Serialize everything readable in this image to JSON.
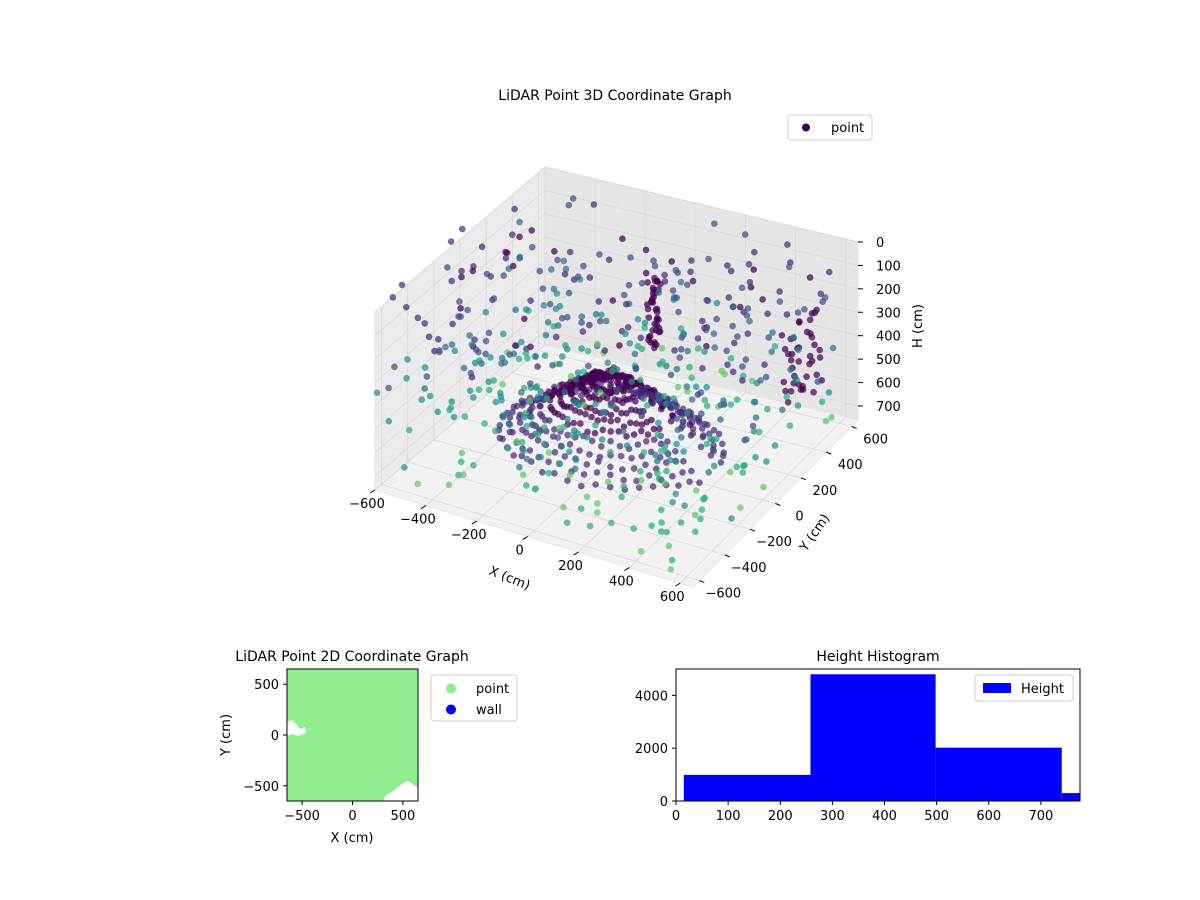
{
  "colors": {
    "point_dark": "#440154",
    "point_blue": "#3b528b",
    "point_teal": "#21918c",
    "point_green": "#5ec962",
    "fill_2d": "#90ee90",
    "wall": "#0000ff",
    "hist": "#0000ff",
    "pane": "#f2f2f2",
    "grid": "#d8d8d8"
  },
  "chart_data": [
    {
      "type": "scatter",
      "title": "LiDAR Point 3D Coordinate Graph",
      "xlabel": "X (cm)",
      "ylabel": "Y (cm)",
      "zlabel": "H (cm)",
      "x_ticks": [
        "−600",
        "−400",
        "−200",
        "0",
        "200",
        "400",
        "600"
      ],
      "y_ticks": [
        "−600",
        "−400",
        "−200",
        "0",
        "200",
        "400",
        "600"
      ],
      "z_ticks": [
        "0",
        "100",
        "200",
        "300",
        "400",
        "500",
        "600",
        "700"
      ],
      "xlim": [
        -600,
        650
      ],
      "ylim": [
        -650,
        650
      ],
      "zlim": [
        0,
        760
      ],
      "z_inverted": true,
      "colormap": "viridis",
      "grid": true,
      "legend": {
        "position": "top-right",
        "entries": [
          "point"
        ]
      }
    },
    {
      "type": "scatter",
      "title": "LiDAR Point 2D Coordinate Graph",
      "xlabel": "X (cm)",
      "ylabel": "Y (cm)",
      "x_ticks": [
        -500,
        0,
        500
      ],
      "y_ticks": [
        -500,
        0,
        500
      ],
      "xlim": [
        -650,
        650
      ],
      "ylim": [
        -650,
        650
      ],
      "series": [
        {
          "name": "point",
          "color": "#90ee90"
        },
        {
          "name": "wall",
          "color": "#0000ff"
        }
      ],
      "legend": {
        "position": "outside-right",
        "entries": [
          "point",
          "wall"
        ]
      }
    },
    {
      "type": "bar",
      "title": "Height Histogram",
      "series": [
        {
          "name": "Height"
        }
      ],
      "bins": [
        {
          "from": 15,
          "to": 258,
          "count": 990
        },
        {
          "from": 258,
          "to": 498,
          "count": 4800
        },
        {
          "from": 498,
          "to": 740,
          "count": 2020
        },
        {
          "from": 740,
          "to": 775,
          "count": 300
        }
      ],
      "x_ticks": [
        0,
        100,
        200,
        300,
        400,
        500,
        600,
        700
      ],
      "y_ticks": [
        0,
        2000,
        4000
      ],
      "xlim": [
        0,
        775
      ],
      "ylim": [
        0,
        5000
      ],
      "legend": {
        "position": "top-right",
        "entries": [
          "Height"
        ]
      }
    }
  ]
}
